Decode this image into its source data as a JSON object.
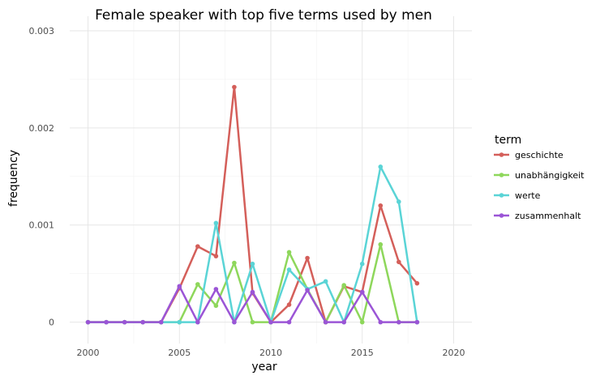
{
  "chart_data": {
    "type": "line",
    "title": "Female speaker with top five terms used by men",
    "xlabel": "year",
    "ylabel": "frequency",
    "xlim": [
      1999,
      2021
    ],
    "ylim": [
      -0.00022,
      0.00315
    ],
    "x_ticks": [
      2000,
      2005,
      2010,
      2015,
      2020
    ],
    "x_tick_labels": [
      "2000",
      "2005",
      "2010",
      "2015",
      "2020"
    ],
    "y_ticks": [
      0,
      0.001,
      0.002,
      0.003
    ],
    "y_tick_labels": [
      "0",
      "0.001",
      "0.002",
      "0.003"
    ],
    "grid": true,
    "legend": {
      "title": "term",
      "position": "right"
    },
    "series": [
      {
        "name": "geschichte",
        "color": "#d45f5a",
        "x": [
          2000,
          2001,
          2002,
          2003,
          2004,
          2005,
          2006,
          2007,
          2008,
          2009,
          2010,
          2011,
          2012,
          2013,
          2014,
          2015,
          2016,
          2017,
          2018
        ],
        "values": [
          0,
          0,
          0,
          0,
          0,
          0.00035,
          0.00078,
          0.00068,
          0.00242,
          0.0003,
          0,
          0.00018,
          0.00066,
          0,
          0.00037,
          0.00031,
          0.0012,
          0.00062,
          0.0004
        ]
      },
      {
        "name": "unabhängigkeit",
        "color": "#8ed75b",
        "x": [
          2000,
          2001,
          2002,
          2003,
          2004,
          2005,
          2006,
          2007,
          2008,
          2009,
          2010,
          2011,
          2012,
          2013,
          2014,
          2015,
          2016,
          2017,
          2018
        ],
        "values": [
          0,
          0,
          0,
          0,
          0,
          0,
          0.00039,
          0.00017,
          0.00061,
          0,
          0,
          0.00072,
          0.00034,
          0,
          0.00038,
          0,
          0.0008,
          0,
          0
        ]
      },
      {
        "name": "werte",
        "color": "#5ad4d6",
        "x": [
          2000,
          2001,
          2002,
          2003,
          2004,
          2005,
          2006,
          2007,
          2008,
          2009,
          2010,
          2011,
          2012,
          2013,
          2014,
          2015,
          2016,
          2017,
          2018
        ],
        "values": [
          0,
          0,
          0,
          0,
          0,
          0,
          0,
          0.00102,
          0,
          0.0006,
          0,
          0.00054,
          0.00034,
          0.00042,
          0,
          0.0006,
          0.0016,
          0.00124,
          0
        ]
      },
      {
        "name": "zusammenhalt",
        "color": "#9b55d6",
        "x": [
          2000,
          2001,
          2002,
          2003,
          2004,
          2005,
          2006,
          2007,
          2008,
          2009,
          2010,
          2011,
          2012,
          2013,
          2014,
          2015,
          2016,
          2017,
          2018
        ],
        "values": [
          0,
          0,
          0,
          0,
          0,
          0.00037,
          0,
          0.00034,
          0,
          0.00031,
          0,
          0,
          0.00033,
          0,
          0,
          0.00031,
          0,
          0,
          0
        ]
      }
    ]
  }
}
